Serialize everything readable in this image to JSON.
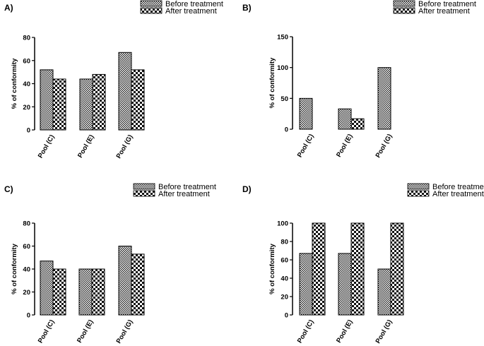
{
  "chart_data": [
    {
      "type": "bar",
      "panel": "A)",
      "categories": [
        "Pool (C)",
        "Pool (E)",
        "Pool (G)"
      ],
      "series": [
        {
          "name": "Before treatment",
          "values": [
            52,
            44,
            67
          ]
        },
        {
          "name": "After treatment",
          "values": [
            44,
            48,
            52
          ]
        }
      ],
      "ylabel": "% of conformity",
      "ylim": [
        0,
        80
      ],
      "yticks": [
        0,
        20,
        40,
        60,
        80
      ],
      "legend": "top-right"
    },
    {
      "type": "bar",
      "panel": "B)",
      "categories": [
        "Pool (C)",
        "Pool (E)",
        "Pool (G)"
      ],
      "series": [
        {
          "name": "Before treatment",
          "values": [
            50,
            33,
            100
          ]
        },
        {
          "name": "After treatment",
          "values": [
            0,
            17,
            0
          ]
        }
      ],
      "ylabel": "% of conformity",
      "ylim": [
        0,
        150
      ],
      "yticks": [
        0,
        50,
        100,
        150
      ],
      "legend": "top-right"
    },
    {
      "type": "bar",
      "panel": "C)",
      "categories": [
        "Pool (C)",
        "Pool (E)",
        "Pool (G)"
      ],
      "series": [
        {
          "name": "Before treatment",
          "values": [
            47,
            40,
            60
          ]
        },
        {
          "name": "After treatment",
          "values": [
            40,
            40,
            53
          ]
        }
      ],
      "ylabel": "% of conformity",
      "ylim": [
        0,
        80
      ],
      "yticks": [
        0,
        20,
        40,
        60,
        80
      ],
      "legend": "top-right"
    },
    {
      "type": "bar",
      "panel": "D)",
      "categories": [
        "Pool (C)",
        "Pool (E)",
        "Pool (G)"
      ],
      "series": [
        {
          "name": "Before treatment",
          "values": [
            67,
            67,
            50
          ]
        },
        {
          "name": "After treatment",
          "values": [
            100,
            100,
            100
          ]
        }
      ],
      "ylabel": "% of conformity",
      "ylim": [
        0,
        100
      ],
      "yticks": [
        0,
        20,
        40,
        60,
        80,
        100
      ],
      "legend": "top-right"
    }
  ]
}
